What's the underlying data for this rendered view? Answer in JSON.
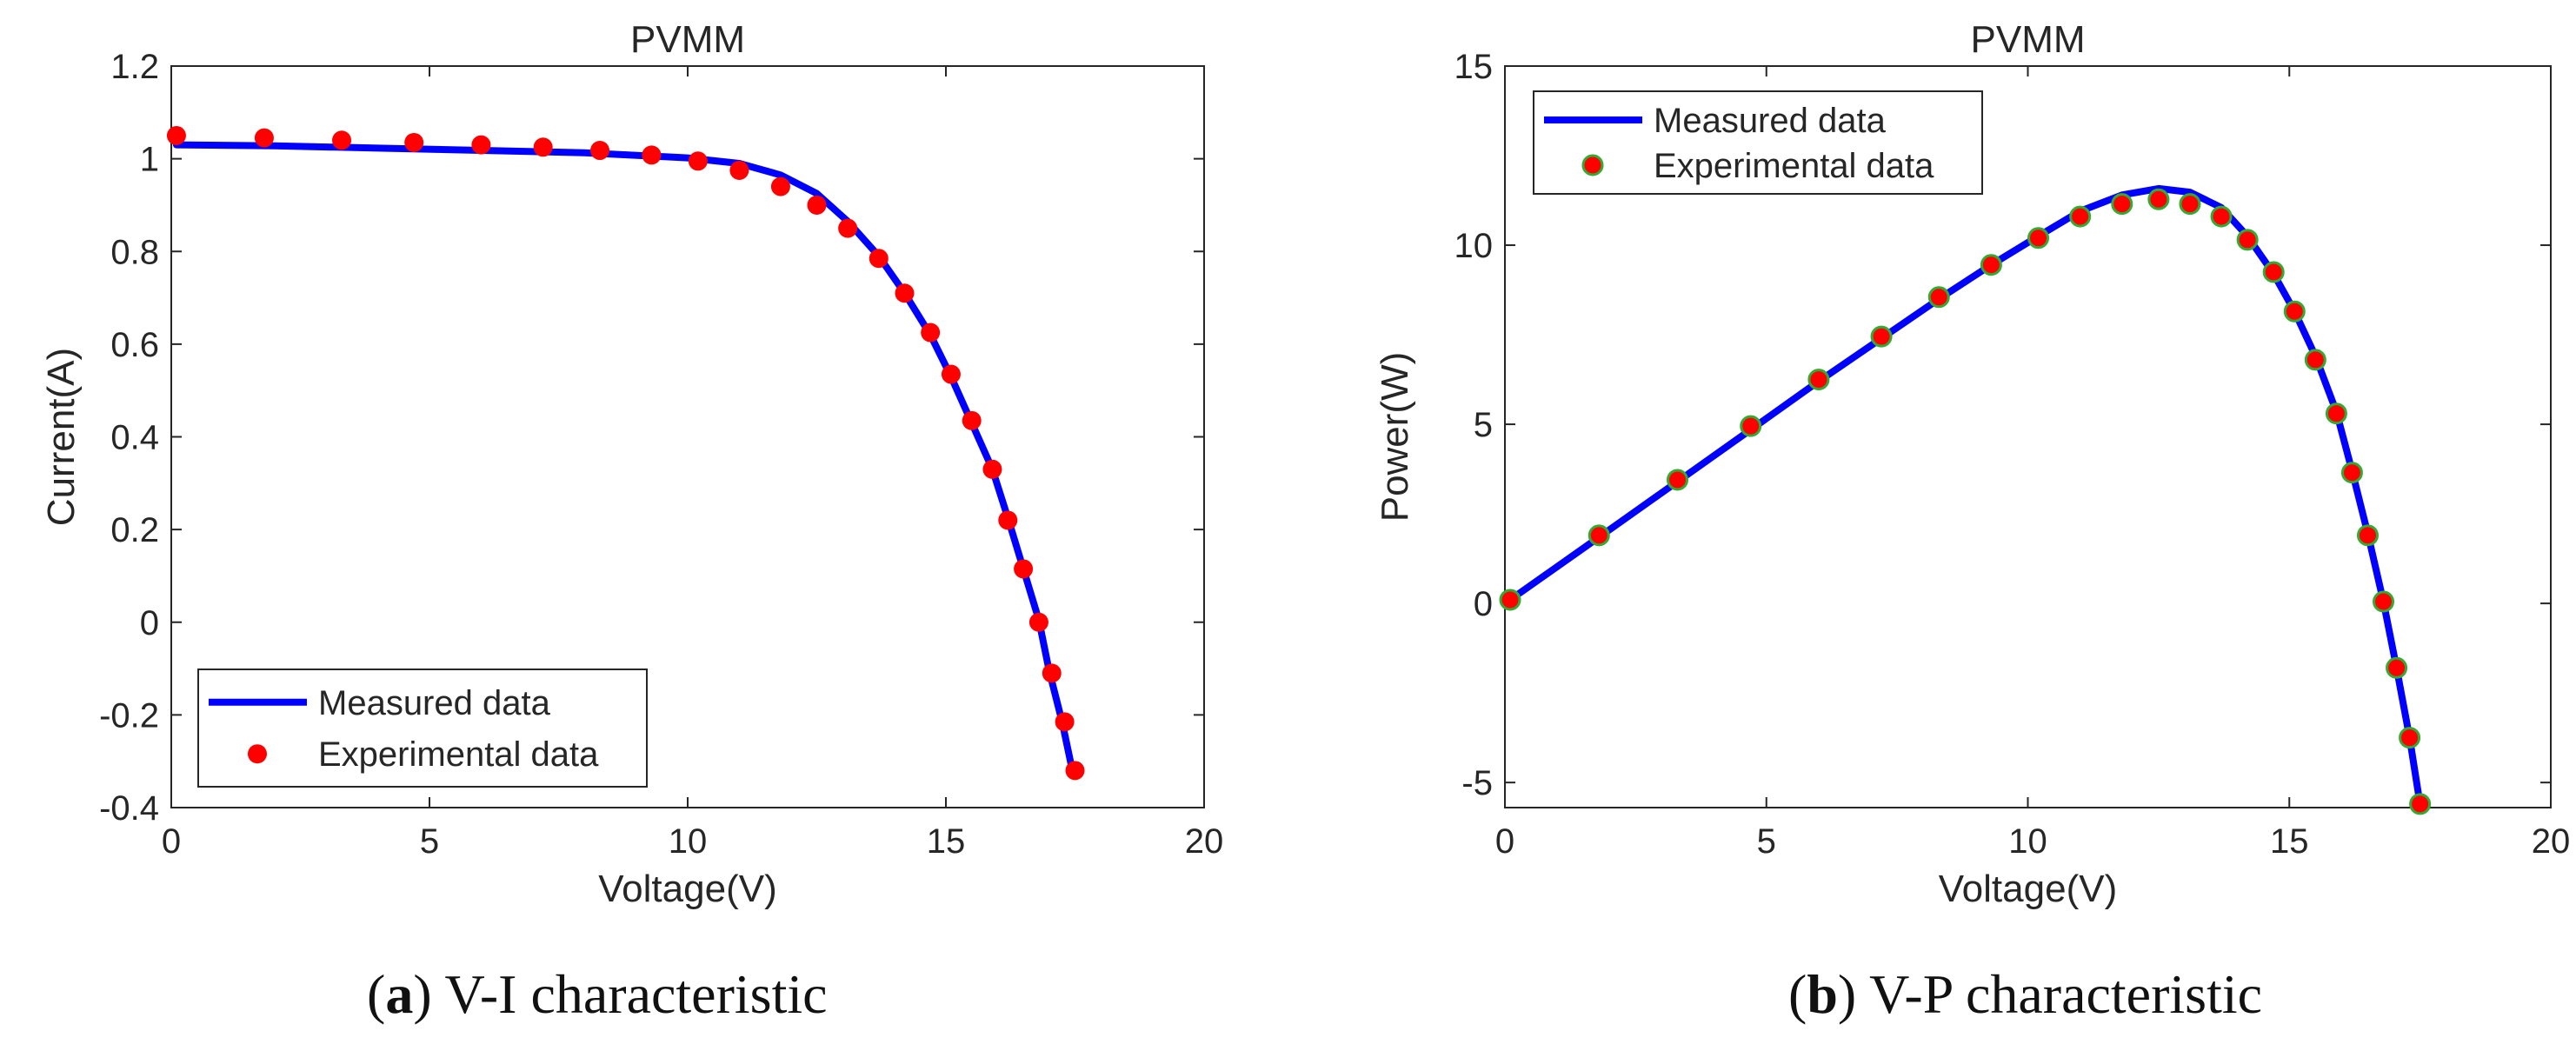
{
  "colors": {
    "measured_line": "#0000ff",
    "experimental_marker": "#ff0000",
    "experimental_marker_edge_b": "#33aa33",
    "axis": "#262626",
    "background": "#ffffff"
  },
  "captions": [
    {
      "letter": "a",
      "text": ") V-I characteristic",
      "open": "("
    },
    {
      "letter": "b",
      "text": ") V-P characteristic",
      "open": "("
    }
  ],
  "chart_data": [
    {
      "type": "line",
      "title": "PVMM",
      "xlabel": "Voltage(V)",
      "ylabel": "Current(A)",
      "xlim": [
        0,
        20
      ],
      "ylim": [
        -0.4,
        1.2
      ],
      "xticks": [
        0,
        5,
        10,
        15,
        20
      ],
      "xtick_labels": [
        "0",
        "5",
        "10",
        "15",
        "20"
      ],
      "yticks": [
        -0.4,
        -0.2,
        0,
        0.2,
        0.4,
        0.6,
        0.8,
        1,
        1.2
      ],
      "ytick_labels": [
        "-0.4",
        "-0.2",
        "0",
        "0.2",
        "0.4",
        "0.6",
        "0.8",
        "1",
        "1.2"
      ],
      "grid": false,
      "legend_position": "bottom-left",
      "series": [
        {
          "name": "Measured data",
          "style": "line",
          "x": [
            0.1,
            2,
            4,
            6,
            8,
            10,
            11,
            11.8,
            12.5,
            13.1,
            13.7,
            14.2,
            14.7,
            15.1,
            15.5,
            15.9,
            16.2,
            16.5,
            16.8,
            17.0,
            17.25,
            17.45
          ],
          "y": [
            1.03,
            1.028,
            1.023,
            1.018,
            1.013,
            1.002,
            0.99,
            0.965,
            0.925,
            0.865,
            0.79,
            0.71,
            0.62,
            0.53,
            0.43,
            0.33,
            0.225,
            0.115,
            0.005,
            -0.105,
            -0.215,
            -0.32
          ]
        },
        {
          "name": "Experimental data",
          "style": "marker",
          "x": [
            0.1,
            1.8,
            3.3,
            4.7,
            6.0,
            7.2,
            8.3,
            9.3,
            10.2,
            11.0,
            11.8,
            12.5,
            13.1,
            13.7,
            14.2,
            14.7,
            15.1,
            15.5,
            15.9,
            16.2,
            16.5,
            16.8,
            17.05,
            17.3,
            17.5
          ],
          "y": [
            1.05,
            1.045,
            1.04,
            1.035,
            1.03,
            1.025,
            1.018,
            1.008,
            0.995,
            0.975,
            0.94,
            0.9,
            0.85,
            0.785,
            0.71,
            0.625,
            0.535,
            0.435,
            0.33,
            0.22,
            0.115,
            0.0,
            -0.11,
            -0.215,
            -0.32
          ]
        }
      ]
    },
    {
      "type": "line",
      "title": "PVMM",
      "xlabel": "Voltage(V)",
      "ylabel": "Power(W)",
      "xlim": [
        0,
        20
      ],
      "ylim": [
        -5.7,
        15
      ],
      "xticks": [
        0,
        5,
        10,
        15,
        20
      ],
      "xtick_labels": [
        "0",
        "5",
        "10",
        "15",
        "20"
      ],
      "yticks": [
        -5,
        0,
        5,
        10,
        15
      ],
      "ytick_labels": [
        "-5",
        "0",
        "5",
        "10",
        "15"
      ],
      "grid": false,
      "legend_position": "top-left",
      "series": [
        {
          "name": "Measured data",
          "style": "line",
          "x": [
            0.1,
            1.8,
            3.3,
            4.7,
            6.0,
            7.2,
            8.3,
            9.3,
            10.2,
            11.0,
            11.8,
            12.5,
            13.1,
            13.7,
            14.2,
            14.7,
            15.1,
            15.5,
            15.9,
            16.2,
            16.5,
            16.8,
            17.05,
            17.3,
            17.5
          ],
          "y": [
            0.1,
            1.85,
            3.4,
            4.85,
            6.2,
            7.4,
            8.5,
            9.45,
            10.25,
            10.95,
            11.4,
            11.58,
            11.48,
            11.05,
            10.25,
            9.2,
            8.15,
            6.9,
            5.35,
            3.7,
            1.95,
            0.05,
            -1.8,
            -3.75,
            -5.6
          ]
        },
        {
          "name": "Experimental data",
          "style": "marker",
          "x": [
            0.1,
            1.8,
            3.3,
            4.7,
            6.0,
            7.2,
            8.3,
            9.3,
            10.2,
            11.0,
            11.8,
            12.5,
            13.1,
            13.7,
            14.2,
            14.7,
            15.1,
            15.5,
            15.9,
            16.2,
            16.5,
            16.8,
            17.05,
            17.3,
            17.5
          ],
          "y": [
            0.1,
            1.9,
            3.45,
            4.95,
            6.25,
            7.45,
            8.55,
            9.45,
            10.2,
            10.8,
            11.15,
            11.28,
            11.15,
            10.8,
            10.15,
            9.25,
            8.15,
            6.8,
            5.3,
            3.65,
            1.9,
            0.05,
            -1.8,
            -3.75,
            -5.6
          ]
        }
      ]
    }
  ]
}
